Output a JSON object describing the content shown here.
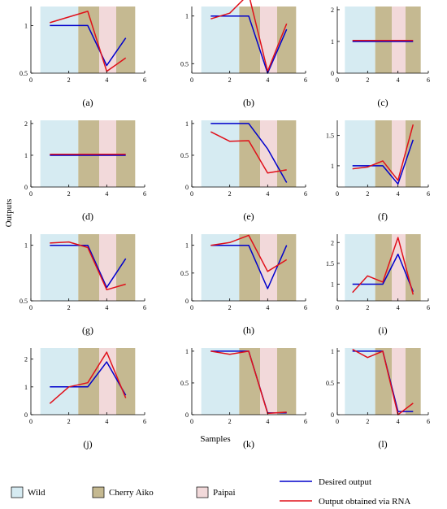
{
  "y_axis_label": "Outputs",
  "x_axis_label": "Samples",
  "legend": {
    "regions": [
      {
        "label": "Wild",
        "color": "#d6ebf2"
      },
      {
        "label": "Cherry Aiko",
        "color": "#c5b991"
      },
      {
        "label": "Paipai",
        "color": "#f2d9da"
      }
    ],
    "lines": [
      {
        "label": "Desired output",
        "color": "#0000cc"
      },
      {
        "label": "Output obtained via RNA",
        "color": "#e0101a"
      }
    ]
  },
  "chart_data": [
    {
      "type": "line",
      "caption": "(a)",
      "xlim": [
        0,
        6
      ],
      "ylim": [
        0.5,
        1.2
      ],
      "xticks": [
        0,
        2,
        4,
        6
      ],
      "yticks": [
        0.5,
        1
      ],
      "regions": [
        {
          "label": "Wild",
          "x": [
            0.5,
            2.5
          ]
        },
        {
          "label": "Cherry Aiko",
          "x": [
            2.5,
            3.6
          ]
        },
        {
          "label": "Paipai",
          "x": [
            3.6,
            4.5
          ]
        },
        {
          "label": "Cherry Aiko",
          "x": [
            4.5,
            5.5
          ]
        }
      ],
      "series": [
        {
          "color": "#0000cc",
          "x": [
            1,
            3,
            4,
            5
          ],
          "y": [
            1.0,
            1.0,
            0.58,
            0.87
          ]
        },
        {
          "color": "#e0101a",
          "x": [
            1,
            3,
            4,
            5
          ],
          "y": [
            1.03,
            1.15,
            0.52,
            0.66
          ]
        }
      ]
    },
    {
      "type": "line",
      "caption": "(b)",
      "xlim": [
        0,
        6
      ],
      "ylim": [
        0.4,
        1.1
      ],
      "xticks": [
        0,
        2,
        4,
        6
      ],
      "yticks": [
        0.5,
        1
      ],
      "regions": [
        {
          "label": "Wild",
          "x": [
            0.5,
            2.5
          ]
        },
        {
          "label": "Cherry Aiko",
          "x": [
            2.5,
            3.6
          ]
        },
        {
          "label": "Paipai",
          "x": [
            3.6,
            4.5
          ]
        },
        {
          "label": "Cherry Aiko",
          "x": [
            4.5,
            5.5
          ]
        }
      ],
      "series": [
        {
          "color": "#0000cc",
          "x": [
            1,
            2,
            3,
            4,
            5
          ],
          "y": [
            1.0,
            1.0,
            1.0,
            0.4,
            0.86
          ]
        },
        {
          "color": "#e0101a",
          "x": [
            1,
            2,
            3,
            4,
            5
          ],
          "y": [
            0.97,
            1.03,
            1.23,
            0.42,
            0.92
          ]
        }
      ]
    },
    {
      "type": "line",
      "caption": "(c)",
      "xlim": [
        0,
        6
      ],
      "ylim": [
        0,
        2.1
      ],
      "xticks": [
        0,
        2,
        4,
        6
      ],
      "yticks": [
        0,
        1,
        2
      ],
      "regions": [
        {
          "label": "Wild",
          "x": [
            0.5,
            2.5
          ]
        },
        {
          "label": "Cherry Aiko",
          "x": [
            2.5,
            3.6
          ]
        },
        {
          "label": "Paipai",
          "x": [
            3.6,
            4.5
          ]
        },
        {
          "label": "Cherry Aiko",
          "x": [
            4.5,
            5.5
          ]
        }
      ],
      "series": [
        {
          "color": "#0000cc",
          "x": [
            1,
            2,
            3,
            4,
            5
          ],
          "y": [
            1.0,
            1.0,
            1.0,
            1.0,
            1.0
          ]
        },
        {
          "color": "#e0101a",
          "x": [
            1,
            2,
            3,
            4,
            5
          ],
          "y": [
            1.03,
            1.03,
            1.03,
            1.03,
            1.03
          ]
        }
      ]
    },
    {
      "type": "line",
      "caption": "(d)",
      "xlim": [
        0,
        6
      ],
      "ylim": [
        0,
        2.1
      ],
      "xticks": [
        0,
        2,
        4,
        6
      ],
      "yticks": [
        0,
        1,
        2
      ],
      "regions": [
        {
          "label": "Wild",
          "x": [
            0.5,
            2.5
          ]
        },
        {
          "label": "Cherry Aiko",
          "x": [
            2.5,
            3.6
          ]
        },
        {
          "label": "Paipai",
          "x": [
            3.6,
            4.5
          ]
        },
        {
          "label": "Cherry Aiko",
          "x": [
            4.5,
            5.5
          ]
        }
      ],
      "series": [
        {
          "color": "#0000cc",
          "x": [
            1,
            2,
            3,
            4,
            5
          ],
          "y": [
            1.0,
            1.0,
            1.0,
            1.0,
            1.0
          ]
        },
        {
          "color": "#e0101a",
          "x": [
            1,
            2,
            3,
            4,
            5
          ],
          "y": [
            1.03,
            1.03,
            1.03,
            1.03,
            1.03
          ]
        }
      ]
    },
    {
      "type": "line",
      "caption": "(e)",
      "xlim": [
        0,
        6
      ],
      "ylim": [
        0,
        1.05
      ],
      "xticks": [
        0,
        2,
        4,
        6
      ],
      "yticks": [
        0,
        0.5,
        1
      ],
      "regions": [
        {
          "label": "Wild",
          "x": [
            0.5,
            2.5
          ]
        },
        {
          "label": "Cherry Aiko",
          "x": [
            2.5,
            3.6
          ]
        },
        {
          "label": "Paipai",
          "x": [
            3.6,
            4.5
          ]
        },
        {
          "label": "Cherry Aiko",
          "x": [
            4.5,
            5.5
          ]
        }
      ],
      "series": [
        {
          "color": "#0000cc",
          "x": [
            1,
            3,
            4,
            5
          ],
          "y": [
            1.0,
            1.0,
            0.6,
            0.07
          ]
        },
        {
          "color": "#e0101a",
          "x": [
            1,
            2,
            3,
            4,
            5
          ],
          "y": [
            0.87,
            0.72,
            0.73,
            0.22,
            0.27
          ]
        }
      ]
    },
    {
      "type": "line",
      "caption": "(f)",
      "xlim": [
        0,
        6
      ],
      "ylim": [
        0.65,
        1.75
      ],
      "xticks": [
        0,
        2,
        4,
        6
      ],
      "yticks": [
        1,
        1.5
      ],
      "regions": [
        {
          "label": "Wild",
          "x": [
            0.5,
            2.5
          ]
        },
        {
          "label": "Cherry Aiko",
          "x": [
            2.5,
            3.6
          ]
        },
        {
          "label": "Paipai",
          "x": [
            3.6,
            4.5
          ]
        },
        {
          "label": "Cherry Aiko",
          "x": [
            4.5,
            5.5
          ]
        }
      ],
      "series": [
        {
          "color": "#0000cc",
          "x": [
            1,
            2,
            3,
            4,
            5
          ],
          "y": [
            1.0,
            1.0,
            1.0,
            0.7,
            1.43
          ]
        },
        {
          "color": "#e0101a",
          "x": [
            1,
            2,
            3,
            4,
            5
          ],
          "y": [
            0.95,
            0.98,
            1.08,
            0.76,
            1.68
          ]
        }
      ]
    },
    {
      "type": "line",
      "caption": "(g)",
      "xlim": [
        0,
        6
      ],
      "ylim": [
        0.5,
        1.1
      ],
      "xticks": [
        0,
        2,
        4,
        6
      ],
      "yticks": [
        0.5,
        1
      ],
      "regions": [
        {
          "label": "Wild",
          "x": [
            0.5,
            2.5
          ]
        },
        {
          "label": "Cherry Aiko",
          "x": [
            2.5,
            3.6
          ]
        },
        {
          "label": "Paipai",
          "x": [
            3.6,
            4.5
          ]
        },
        {
          "label": "Cherry Aiko",
          "x": [
            4.5,
            5.5
          ]
        }
      ],
      "series": [
        {
          "color": "#0000cc",
          "x": [
            1,
            3,
            4,
            5
          ],
          "y": [
            1.0,
            1.0,
            0.62,
            0.88
          ]
        },
        {
          "color": "#e0101a",
          "x": [
            1,
            2,
            3,
            4,
            5
          ],
          "y": [
            1.02,
            1.03,
            0.98,
            0.6,
            0.65
          ]
        }
      ]
    },
    {
      "type": "line",
      "caption": "(h)",
      "xlim": [
        0,
        6
      ],
      "ylim": [
        0,
        1.2
      ],
      "xticks": [
        0,
        2,
        4,
        6
      ],
      "yticks": [
        0,
        0.5,
        1
      ],
      "regions": [
        {
          "label": "Wild",
          "x": [
            0.5,
            2.5
          ]
        },
        {
          "label": "Cherry Aiko",
          "x": [
            2.5,
            3.6
          ]
        },
        {
          "label": "Paipai",
          "x": [
            3.6,
            4.5
          ]
        },
        {
          "label": "Cherry Aiko",
          "x": [
            4.5,
            5.5
          ]
        }
      ],
      "series": [
        {
          "color": "#0000cc",
          "x": [
            1,
            2,
            3,
            4,
            5
          ],
          "y": [
            1.0,
            1.0,
            1.0,
            0.22,
            1.0
          ]
        },
        {
          "color": "#e0101a",
          "x": [
            1,
            2,
            3,
            4,
            5
          ],
          "y": [
            1.0,
            1.05,
            1.18,
            0.53,
            0.74
          ]
        }
      ]
    },
    {
      "type": "line",
      "caption": "(i)",
      "xlim": [
        0,
        6
      ],
      "ylim": [
        0.6,
        2.2
      ],
      "xticks": [
        0,
        2,
        4,
        6
      ],
      "yticks": [
        1,
        1.5,
        2
      ],
      "regions": [
        {
          "label": "Wild",
          "x": [
            0.5,
            2.5
          ]
        },
        {
          "label": "Cherry Aiko",
          "x": [
            2.5,
            3.6
          ]
        },
        {
          "label": "Paipai",
          "x": [
            3.6,
            4.5
          ]
        },
        {
          "label": "Cherry Aiko",
          "x": [
            4.5,
            5.5
          ]
        }
      ],
      "series": [
        {
          "color": "#0000cc",
          "x": [
            1,
            2,
            3,
            4,
            5
          ],
          "y": [
            1.0,
            1.0,
            1.0,
            1.72,
            0.82
          ]
        },
        {
          "color": "#e0101a",
          "x": [
            1,
            2,
            3,
            4,
            5
          ],
          "y": [
            0.8,
            1.2,
            1.05,
            2.12,
            0.75
          ]
        }
      ]
    },
    {
      "type": "line",
      "caption": "(j)",
      "xlim": [
        0,
        6
      ],
      "ylim": [
        0,
        2.4
      ],
      "xticks": [
        0,
        2,
        4,
        6
      ],
      "yticks": [
        0,
        1,
        2
      ],
      "regions": [
        {
          "label": "Wild",
          "x": [
            0.5,
            2.5
          ]
        },
        {
          "label": "Cherry Aiko",
          "x": [
            2.5,
            3.6
          ]
        },
        {
          "label": "Paipai",
          "x": [
            3.6,
            4.5
          ]
        },
        {
          "label": "Cherry Aiko",
          "x": [
            4.5,
            5.5
          ]
        }
      ],
      "series": [
        {
          "color": "#0000cc",
          "x": [
            1,
            2,
            3,
            4,
            5
          ],
          "y": [
            1.0,
            1.0,
            1.0,
            1.9,
            0.7
          ]
        },
        {
          "color": "#e0101a",
          "x": [
            1,
            2,
            3,
            4,
            5
          ],
          "y": [
            0.4,
            1.0,
            1.15,
            2.25,
            0.6
          ]
        }
      ]
    },
    {
      "type": "line",
      "caption": "(k)",
      "xlim": [
        0,
        6
      ],
      "ylim": [
        0,
        1.05
      ],
      "xticks": [
        0,
        2,
        4,
        6
      ],
      "yticks": [
        0,
        0.5,
        1
      ],
      "regions": [
        {
          "label": "Wild",
          "x": [
            0.5,
            2.5
          ]
        },
        {
          "label": "Cherry Aiko",
          "x": [
            2.5,
            3.6
          ]
        },
        {
          "label": "Paipai",
          "x": [
            3.6,
            4.5
          ]
        },
        {
          "label": "Cherry Aiko",
          "x": [
            4.5,
            5.5
          ]
        }
      ],
      "series": [
        {
          "color": "#0000cc",
          "x": [
            1,
            2,
            3,
            4,
            5
          ],
          "y": [
            1.0,
            1.0,
            1.0,
            0.03,
            0.03
          ]
        },
        {
          "color": "#e0101a",
          "x": [
            1,
            2,
            3,
            4,
            5
          ],
          "y": [
            1.0,
            0.95,
            1.0,
            0.02,
            0.04
          ]
        }
      ]
    },
    {
      "type": "line",
      "caption": "(l)",
      "xlim": [
        0,
        6
      ],
      "ylim": [
        0,
        1.05
      ],
      "xticks": [
        0,
        2,
        4,
        6
      ],
      "yticks": [
        0,
        0.5,
        1
      ],
      "regions": [
        {
          "label": "Wild",
          "x": [
            0.5,
            2.5
          ]
        },
        {
          "label": "Cherry Aiko",
          "x": [
            2.5,
            3.6
          ]
        },
        {
          "label": "Paipai",
          "x": [
            3.6,
            4.5
          ]
        },
        {
          "label": "Cherry Aiko",
          "x": [
            4.5,
            5.5
          ]
        }
      ],
      "series": [
        {
          "color": "#0000cc",
          "x": [
            1,
            2,
            3,
            4,
            5
          ],
          "y": [
            1.0,
            1.0,
            1.0,
            0.05,
            0.05
          ]
        },
        {
          "color": "#e0101a",
          "x": [
            1,
            2,
            3,
            4,
            5
          ],
          "y": [
            1.03,
            0.9,
            1.0,
            0.0,
            0.18
          ]
        }
      ]
    }
  ]
}
